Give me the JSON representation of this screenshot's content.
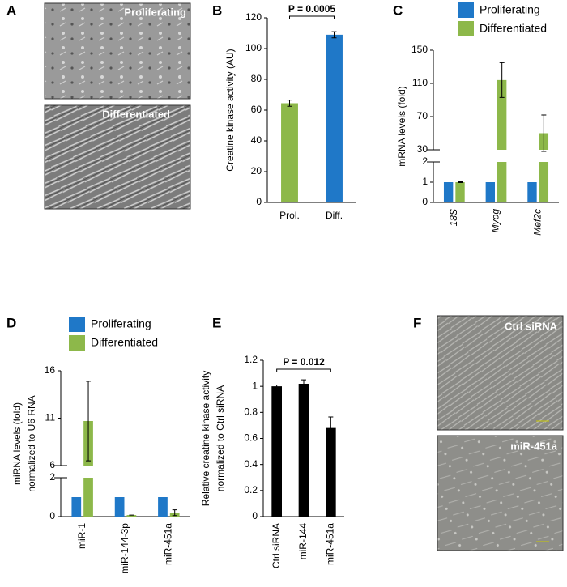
{
  "figure_panels": [
    {
      "letter": "A",
      "labels": [
        "Proliferating",
        "Differentiated"
      ]
    },
    {
      "letter": "F",
      "labels": [
        "Ctrl siRNA",
        "miR-451a"
      ]
    }
  ],
  "chart_data": [
    {
      "type": "bar",
      "panel": "B",
      "ylabel": [
        "Creatine kinase activity (AU)"
      ],
      "categories": [
        "Prol.",
        "Diff."
      ],
      "values": [
        64.5,
        109
      ],
      "errors": [
        2,
        2
      ],
      "colors": [
        "#8db84a",
        "#1f78c8"
      ],
      "ylim": [
        0,
        120
      ],
      "yticks": [
        0,
        20,
        40,
        60,
        80,
        100,
        120
      ],
      "annotation": "P = 0.0005"
    },
    {
      "type": "grouped-bar",
      "panel": "C",
      "ylabel": [
        "mRNA levels (fold)"
      ],
      "categories": [
        "18S",
        "Myog",
        "Mef2c"
      ],
      "italic_categories": true,
      "series": [
        {
          "name": "Proliferating",
          "color": "#1f78c8",
          "values": [
            1,
            1,
            1
          ]
        },
        {
          "name": "Differentiated",
          "color": "#8db84a",
          "values": [
            1,
            114,
            50
          ],
          "errors": [
            0.02,
            21,
            22
          ]
        }
      ],
      "segments": [
        {
          "ylim": [
            0,
            2
          ],
          "yticks": [
            0,
            1,
            2
          ]
        },
        {
          "ylim": [
            30,
            150
          ],
          "yticks": [
            30,
            70,
            110,
            150
          ]
        }
      ]
    },
    {
      "type": "grouped-bar",
      "panel": "D",
      "ylabel": [
        "miRNA levels (fold)",
        "normalized to U6 RNA"
      ],
      "categories": [
        "miR-1",
        "miR-144-3p",
        "miR-451a"
      ],
      "series": [
        {
          "name": "Proliferating",
          "color": "#1f78c8",
          "values": [
            1,
            1,
            1
          ]
        },
        {
          "name": "Differentiated",
          "color": "#8db84a",
          "values": [
            10.7,
            0.08,
            0.2
          ],
          "errors": [
            4.2,
            0,
            0.15
          ]
        }
      ],
      "segments": [
        {
          "ylim": [
            0,
            2
          ],
          "yticks": [
            0,
            2
          ]
        },
        {
          "ylim": [
            6,
            16
          ],
          "yticks": [
            6,
            11,
            16
          ]
        }
      ]
    },
    {
      "type": "bar",
      "panel": "E",
      "ylabel": [
        "Relative creatine kinase activity",
        "normalized to Ctrl siRNA"
      ],
      "categories": [
        "Ctrl siRNA",
        "miR-144",
        "miR-451a"
      ],
      "values": [
        1.0,
        1.02,
        0.68
      ],
      "errors": [
        0.01,
        0.03,
        0.085
      ],
      "color": "#000000",
      "ylim": [
        0,
        1.2
      ],
      "yticks": [
        0,
        0.2,
        0.4,
        0.6,
        0.8,
        1,
        1.2
      ],
      "annotation": "P = 0.012"
    }
  ]
}
